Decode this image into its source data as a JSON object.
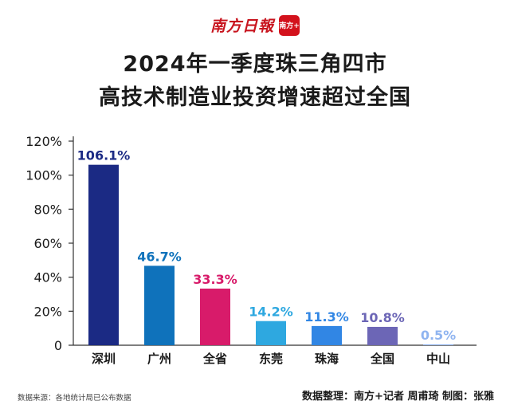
{
  "header": {
    "brand": "南方日報",
    "logo_text": "南方+",
    "title_line1": "2024年一季度珠三角四市",
    "title_line2": "高技术制造业投资增速超过全国"
  },
  "chart_data": {
    "type": "bar",
    "title": "2024年一季度珠三角四市高技术制造业投资增速超过全国",
    "categories": [
      "深圳",
      "广州",
      "全省",
      "东莞",
      "珠海",
      "全国",
      "中山"
    ],
    "values": [
      106.1,
      46.7,
      33.3,
      14.2,
      11.3,
      10.8,
      0.5
    ],
    "value_labels": [
      "106.1%",
      "46.7%",
      "33.3%",
      "14.2%",
      "11.3%",
      "10.8%",
      "0.5%"
    ],
    "bar_colors": [
      "#1b2a84",
      "#0f72bb",
      "#d81b6a",
      "#2ea8e0",
      "#3186e4",
      "#6c66b6",
      "#8fb4f0"
    ],
    "label_colors": [
      "#1b2a84",
      "#0f72bb",
      "#d81b6a",
      "#2ea8e0",
      "#3186e4",
      "#6c66b6",
      "#8fb4f0"
    ],
    "y_ticks": [
      "0",
      "20%",
      "40%",
      "60%",
      "80%",
      "100%",
      "120%"
    ],
    "ylim": [
      0,
      120
    ],
    "xlabel": "",
    "ylabel": "",
    "grid": false
  },
  "footer": {
    "source": "数据来源：各地统计局已公布数据",
    "credit": "数据整理：南方+记者 周甫琦 制图：张雅"
  }
}
